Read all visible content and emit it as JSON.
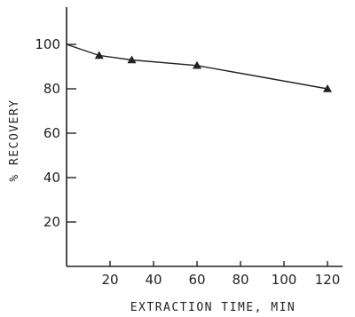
{
  "chart_data": {
    "type": "line",
    "xlabel": "EXTRACTION TIME, MIN",
    "ylabel": "% RECOVERY",
    "xlim": [
      0,
      125
    ],
    "ylim": [
      0,
      118
    ],
    "x_ticks": [
      20,
      40,
      60,
      80,
      100,
      120
    ],
    "y_ticks": [
      20,
      40,
      60,
      80,
      100
    ],
    "x": [
      0,
      15,
      30,
      60,
      120
    ],
    "y": [
      100,
      95,
      93,
      90.5,
      80
    ],
    "markers_on": [
      15,
      30,
      60,
      120
    ],
    "marker_shape": "triangle",
    "grid": false,
    "legend": "none",
    "colors": {
      "ink": "#222222",
      "background": "#ffffff"
    }
  }
}
